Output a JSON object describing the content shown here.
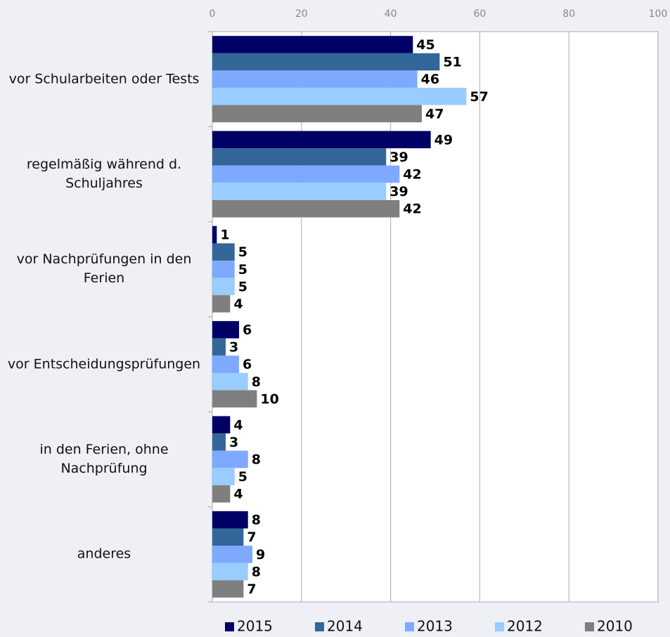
{
  "chart_data": {
    "type": "bar",
    "orientation": "horizontal",
    "categories": [
      "vor Schularbeiten oder Tests",
      "regelmäßig während d. Schuljahres",
      "vor Nachprüfungen in den Ferien",
      "vor Entscheidungsprüfungen",
      "in den Ferien, ohne Nachprüfung",
      "anderes"
    ],
    "series": [
      {
        "name": "2015",
        "color": "#000066",
        "values": [
          45,
          49,
          1,
          6,
          4,
          8
        ]
      },
      {
        "name": "2014",
        "color": "#336699",
        "values": [
          51,
          39,
          5,
          3,
          3,
          7
        ]
      },
      {
        "name": "2013",
        "color": "#7fa8ff",
        "values": [
          46,
          42,
          5,
          6,
          8,
          9
        ]
      },
      {
        "name": "2012",
        "color": "#99ccff",
        "values": [
          57,
          39,
          5,
          8,
          5,
          8
        ]
      },
      {
        "name": "2010",
        "color": "#7f7f7f",
        "values": [
          47,
          42,
          4,
          10,
          4,
          7
        ]
      }
    ],
    "xlim": [
      0,
      100
    ],
    "xticks": [
      0,
      20,
      40,
      60,
      80,
      100
    ],
    "grid": true,
    "legend": "bottom"
  }
}
